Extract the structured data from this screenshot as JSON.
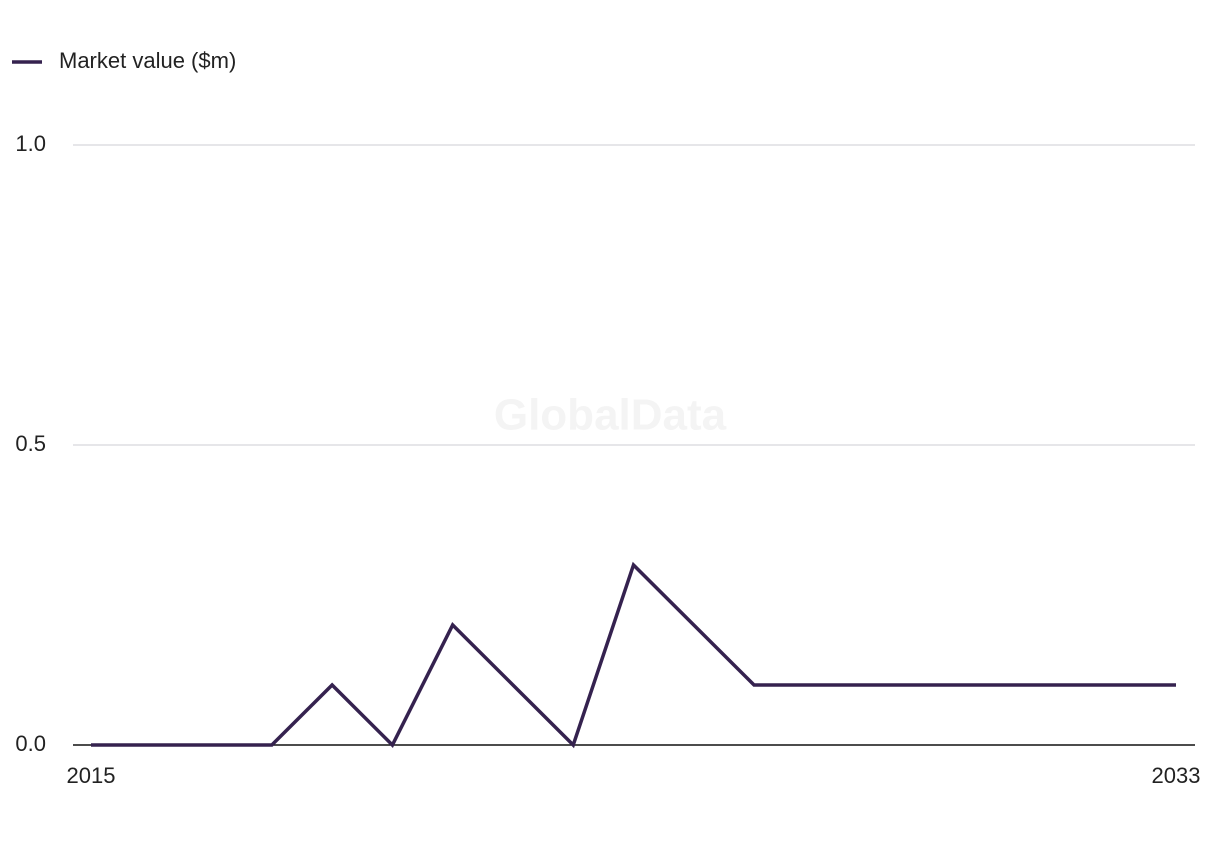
{
  "chart_data": {
    "type": "line",
    "watermark": "GlobalData",
    "x": [
      2015,
      2016,
      2017,
      2018,
      2019,
      2020,
      2021,
      2022,
      2023,
      2024,
      2025,
      2026,
      2027,
      2028,
      2029,
      2030,
      2031,
      2032,
      2033
    ],
    "series": [
      {
        "name": "Market value ($m)",
        "color": "#35224f",
        "values": [
          0,
          0,
          0,
          0,
          0.1,
          0,
          0.2,
          0.1,
          0,
          0.3,
          0.2,
          0.1,
          0.1,
          0.1,
          0.1,
          0.1,
          0.1,
          0.1,
          0.1
        ]
      }
    ],
    "xlim": [
      2015,
      2033
    ],
    "xticks": [
      2015,
      2033
    ],
    "ylim": [
      0,
      1
    ],
    "yticks": [
      {
        "value": 0,
        "label": "0.0"
      },
      0.5,
      {
        "value": 1,
        "label": "1.0"
      }
    ],
    "grid": true,
    "legend": "top-left"
  }
}
